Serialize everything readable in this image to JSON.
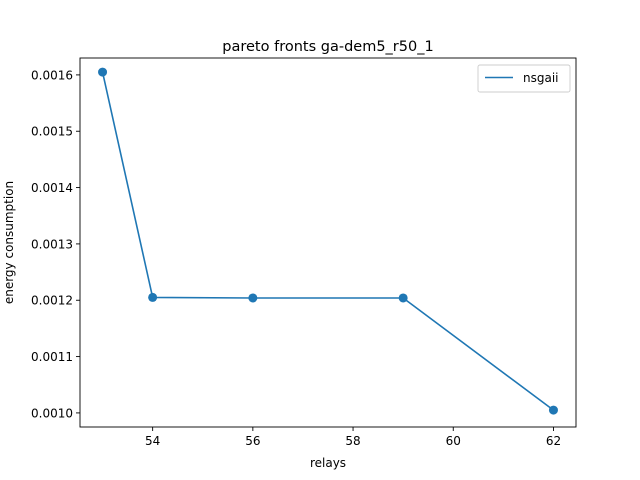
{
  "chart_data": {
    "type": "line",
    "title": "pareto fronts ga-dem5_r50_1",
    "xlabel": "relays",
    "ylabel": "energy consumption",
    "xlim": [
      52.55,
      62.45
    ],
    "ylim": [
      0.000975,
      0.00163
    ],
    "xticks": [
      54,
      56,
      58,
      60,
      62
    ],
    "xtick_labels": [
      "54",
      "56",
      "58",
      "60",
      "62"
    ],
    "yticks": [
      0.001,
      0.0011,
      0.0012,
      0.0013,
      0.0014,
      0.0015,
      0.0016
    ],
    "ytick_labels": [
      "0.0010",
      "0.0011",
      "0.0012",
      "0.0013",
      "0.0014",
      "0.0015",
      "0.0016"
    ],
    "grid": false,
    "legend_position": "top-right",
    "series": [
      {
        "name": "nsgaii",
        "color": "#1f77b4",
        "marker": "circle",
        "x": [
          53,
          54,
          56,
          59,
          62
        ],
        "y": [
          0.001605,
          0.001205,
          0.001204,
          0.001204,
          0.001005
        ]
      }
    ]
  }
}
